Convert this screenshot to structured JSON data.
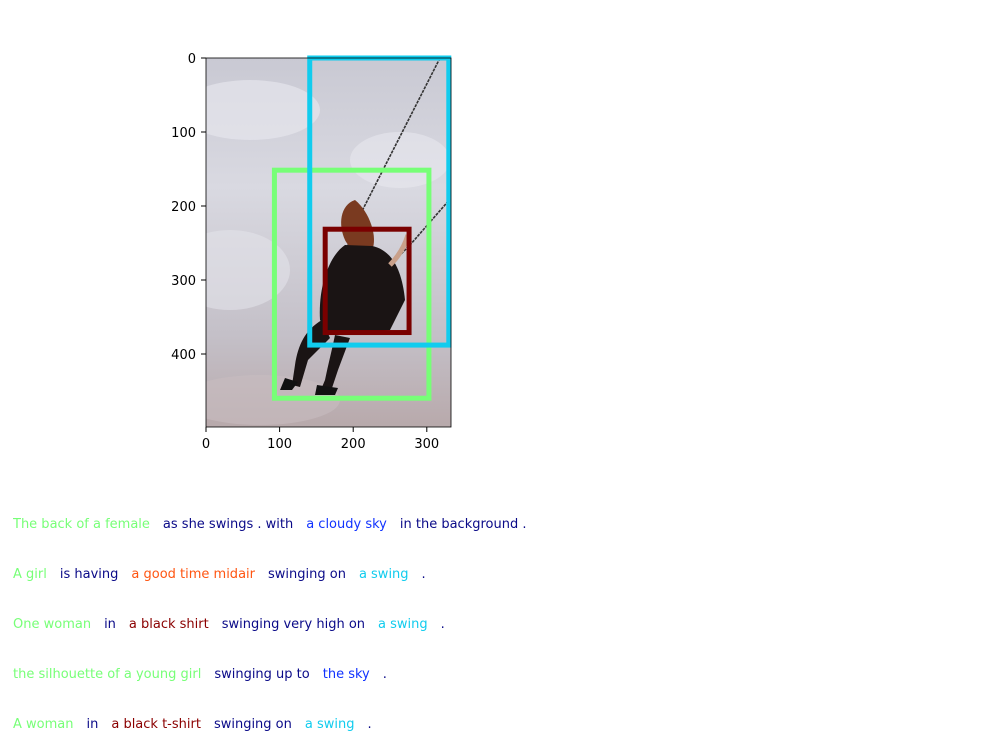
{
  "figure": {
    "x_ticks": [
      "0",
      "100",
      "200",
      "300"
    ],
    "y_ticks": [
      "0",
      "100",
      "200",
      "300",
      "400"
    ],
    "photo_subject": "girl-on-swing-cloudy-sky",
    "image_size": [
      333,
      500
    ]
  },
  "boxes": [
    {
      "name": "person-box",
      "color": "#77ff77",
      "x1": 93,
      "y1": 152,
      "x2": 303,
      "y2": 461
    },
    {
      "name": "sky-box",
      "color": "#11ccee",
      "x1": 141,
      "y1": 0,
      "x2": 330,
      "y2": 389
    },
    {
      "name": "shirt-box",
      "color": "#7a0000",
      "x1": 162,
      "y1": 232,
      "x2": 276,
      "y2": 372
    }
  ],
  "captions": [
    [
      {
        "text": "The back of a female",
        "color": "#77ff77"
      },
      {
        "text": "as she swings . with",
        "color": "#0a0a88"
      },
      {
        "text": "a cloudy sky",
        "color": "#1133ff"
      },
      {
        "text": "in the background .",
        "color": "#0a0a88"
      }
    ],
    [
      {
        "text": "A girl",
        "color": "#77ff77"
      },
      {
        "text": "is having",
        "color": "#0a0a88"
      },
      {
        "text": "a good time midair",
        "color": "#ff5511"
      },
      {
        "text": "swinging on",
        "color": "#0a0a88"
      },
      {
        "text": "a swing",
        "color": "#11ccee"
      },
      {
        "text": ".",
        "color": "#0a0a88"
      }
    ],
    [
      {
        "text": "One woman",
        "color": "#77ff77"
      },
      {
        "text": "in",
        "color": "#0a0a88"
      },
      {
        "text": "a black shirt",
        "color": "#8b0000"
      },
      {
        "text": "swinging very high on",
        "color": "#0a0a88"
      },
      {
        "text": "a swing",
        "color": "#11ccee"
      },
      {
        "text": ".",
        "color": "#0a0a88"
      }
    ],
    [
      {
        "text": "the silhouette of a young girl",
        "color": "#77ff77"
      },
      {
        "text": "swinging up to",
        "color": "#0a0a88"
      },
      {
        "text": "the sky",
        "color": "#1133ff"
      },
      {
        "text": ".",
        "color": "#0a0a88"
      }
    ],
    [
      {
        "text": "A woman",
        "color": "#77ff77"
      },
      {
        "text": "in",
        "color": "#0a0a88"
      },
      {
        "text": "a black t-shirt",
        "color": "#8b0000"
      },
      {
        "text": "swinging on",
        "color": "#0a0a88"
      },
      {
        "text": "a swing",
        "color": "#11ccee"
      },
      {
        "text": ".",
        "color": "#0a0a88"
      }
    ]
  ]
}
